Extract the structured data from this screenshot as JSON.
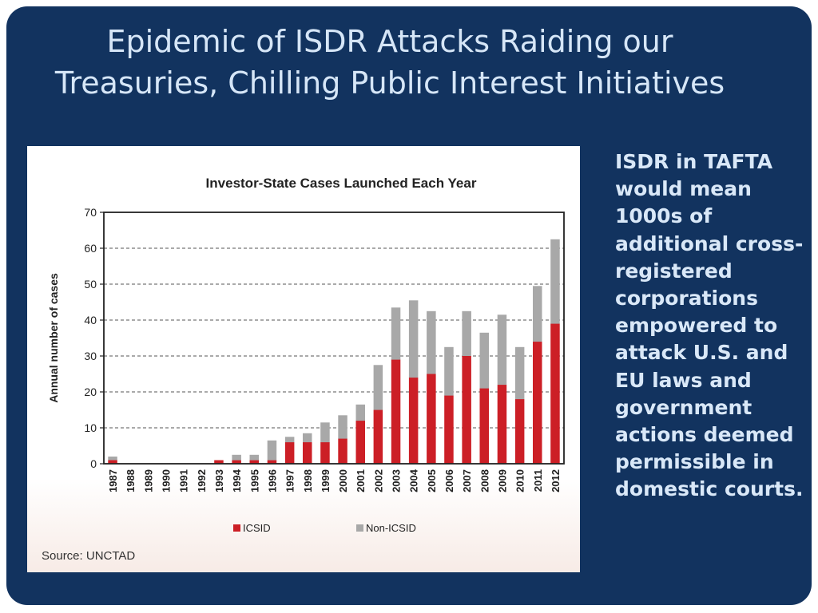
{
  "slide": {
    "title_line1": "Epidemic of ISDR Attacks Raiding our",
    "title_line2": "Treasuries, Chilling Public Interest Initiatives",
    "side_text": "ISDR in TAFTA would mean 1000s of additional cross-registered corporations empowered to attack U.S. and EU laws and government actions deemed permissible in domestic courts.",
    "background_color": "#12335f"
  },
  "chart_data": {
    "type": "bar",
    "stacked": true,
    "title": "Investor-State Cases Launched Each Year",
    "xlabel": "",
    "ylabel": "Annual number of cases",
    "ylim": [
      0,
      70
    ],
    "yticks": [
      0,
      10,
      20,
      30,
      40,
      50,
      60,
      70
    ],
    "grid": true,
    "legend_position": "bottom",
    "source": "Source: UNCTAD",
    "categories": [
      "1987",
      "1988",
      "1989",
      "1990",
      "1991",
      "1992",
      "1993",
      "1994",
      "1995",
      "1996",
      "1997",
      "1998",
      "1999",
      "2000",
      "2001",
      "2002",
      "2003",
      "2004",
      "2005",
      "2006",
      "2007",
      "2008",
      "2009",
      "2010",
      "2011",
      "2012"
    ],
    "series": [
      {
        "name": "ICSID",
        "color": "#cc1f26",
        "values": [
          1,
          0,
          0,
          0,
          0,
          0,
          1,
          1,
          1,
          1,
          6,
          6,
          6,
          7,
          12,
          15,
          29,
          24,
          25,
          19,
          30,
          21,
          22,
          18,
          34,
          39
        ]
      },
      {
        "name": "Non-ICSID",
        "color": "#a8a8a8",
        "values": [
          1,
          0,
          0,
          0,
          0,
          0,
          0,
          1.5,
          1.5,
          5.5,
          1.5,
          2.5,
          5.5,
          6.5,
          4.5,
          12.5,
          14.5,
          21.5,
          17.5,
          13.5,
          12.5,
          15.5,
          19.5,
          14.5,
          15.5,
          23.5
        ]
      }
    ]
  }
}
